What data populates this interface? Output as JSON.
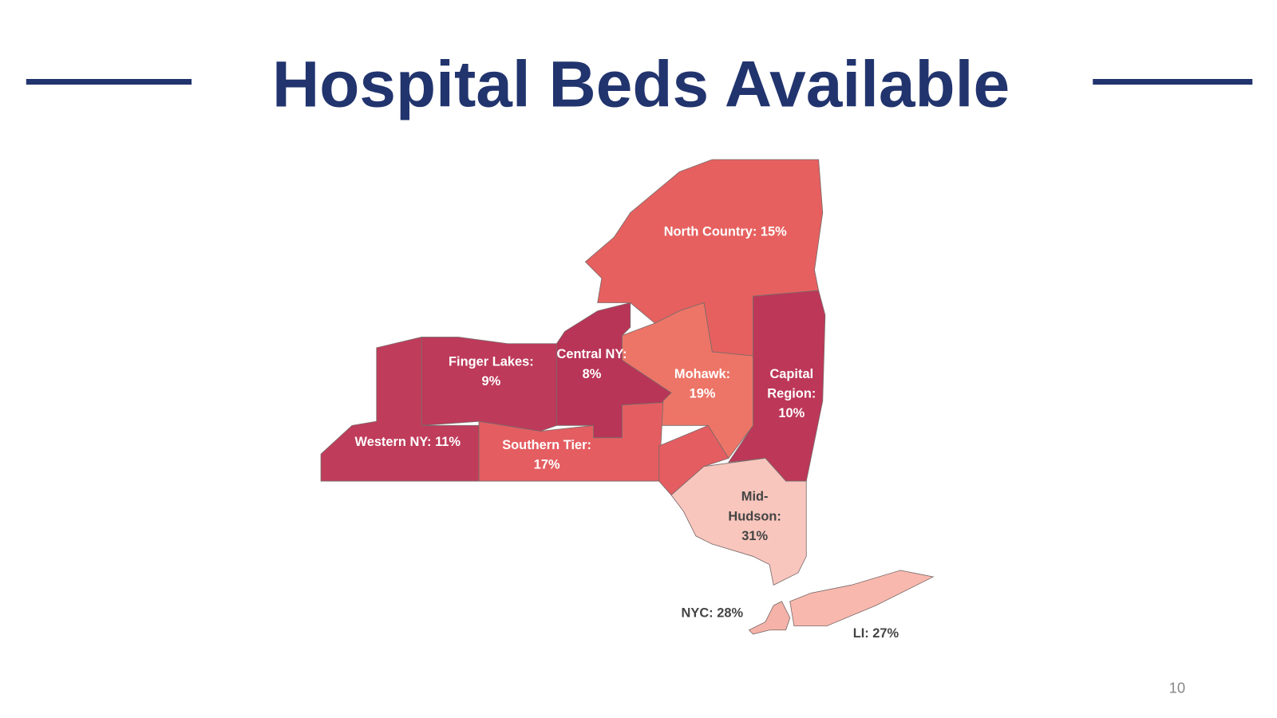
{
  "header": {
    "title": "Hospital Beds Available"
  },
  "map": {
    "regions": [
      {
        "label": [
          "North Country: 15%"
        ],
        "color": "#e6605f",
        "label_color": "#ffffff"
      },
      {
        "label": [
          "Finger Lakes:",
          "9%"
        ],
        "color": "#be3a5a",
        "label_color": "#ffffff"
      },
      {
        "label": [
          "Central NY:",
          "8%"
        ],
        "color": "#b93557",
        "label_color": "#ffffff"
      },
      {
        "label": [
          "Mohawk:",
          "19%"
        ],
        "color": "#ed7567",
        "label_color": "#ffffff"
      },
      {
        "label": [
          "Capital",
          "Region:",
          "10%"
        ],
        "color": "#bc3758",
        "label_color": "#ffffff"
      },
      {
        "label": [
          "Western NY: 11%"
        ],
        "color": "#c03c5b",
        "label_color": "#ffffff"
      },
      {
        "label": [
          "Southern Tier:",
          "17%"
        ],
        "color": "#e45d61",
        "label_color": "#ffffff"
      },
      {
        "label": [
          "Mid-",
          "Hudson:",
          "31%"
        ],
        "color": "#f8c6bd",
        "label_color": "#444444"
      },
      {
        "label": [
          "NYC: 28%"
        ],
        "color": "#f4b2a8",
        "label_color": "#444444"
      },
      {
        "label": [
          "LI: 27%"
        ],
        "color": "#f8b8ae",
        "label_color": "#444444"
      }
    ]
  },
  "footer": {
    "page_number": "10"
  }
}
